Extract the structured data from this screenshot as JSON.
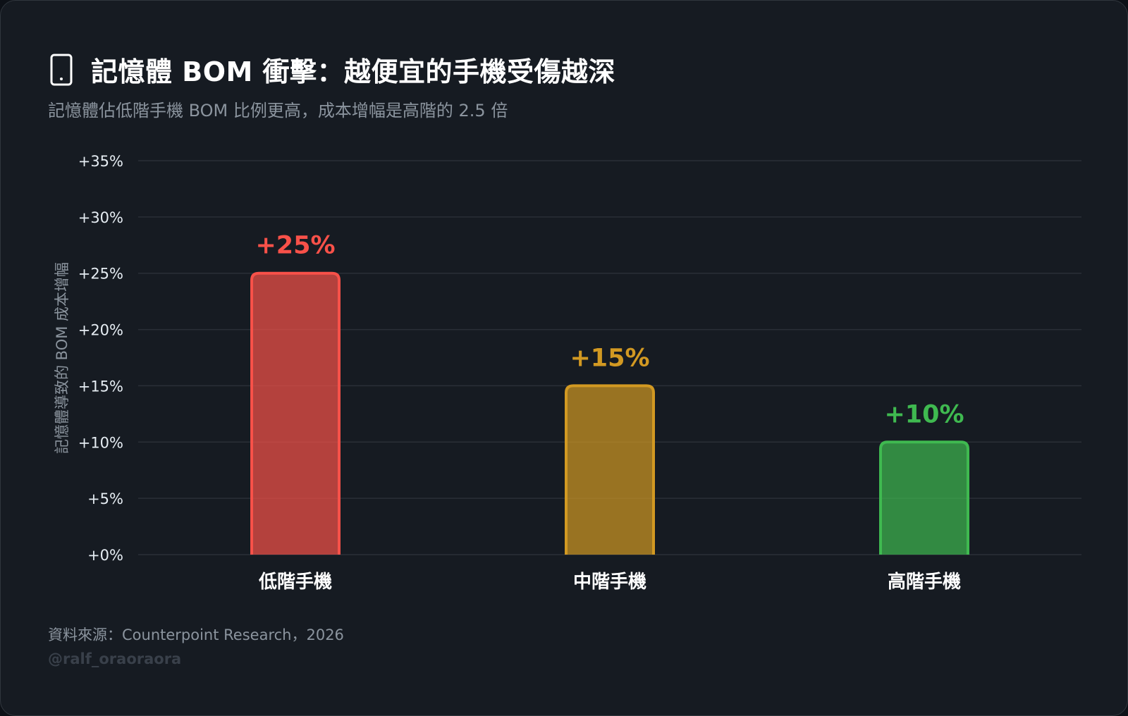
{
  "header": {
    "icon": "mobile-phone-icon",
    "title": "記憶體 BOM 衝擊：越便宜的手機受傷越深",
    "subtitle": "記憶體佔低階手機 BOM 比例更高，成本增幅是高階的 2.5 倍"
  },
  "footer": {
    "source": "資料來源：Counterpoint Research，2026",
    "handle": "@ralf_oraoraora"
  },
  "colors": {
    "background": "#161b22",
    "grid": "#2a2f37",
    "low": "#f85149",
    "mid": "#d29922",
    "high": "#3fb950"
  },
  "chart_data": {
    "type": "bar",
    "categories": [
      "低階手機",
      "中階手機",
      "高階手機"
    ],
    "values": [
      25,
      15,
      10
    ],
    "data_labels": [
      "+25%",
      "+15%",
      "+10%"
    ],
    "ylabel": "記憶體導致的 BOM 成本增幅",
    "xlabel": "",
    "ylim": [
      0,
      35
    ],
    "yticks": [
      0,
      5,
      10,
      15,
      20,
      25,
      30,
      35
    ],
    "ytick_labels": [
      "+0%",
      "+5%",
      "+10%",
      "+15%",
      "+20%",
      "+25%",
      "+30%",
      "+35%"
    ],
    "grid": true,
    "legend": false
  }
}
